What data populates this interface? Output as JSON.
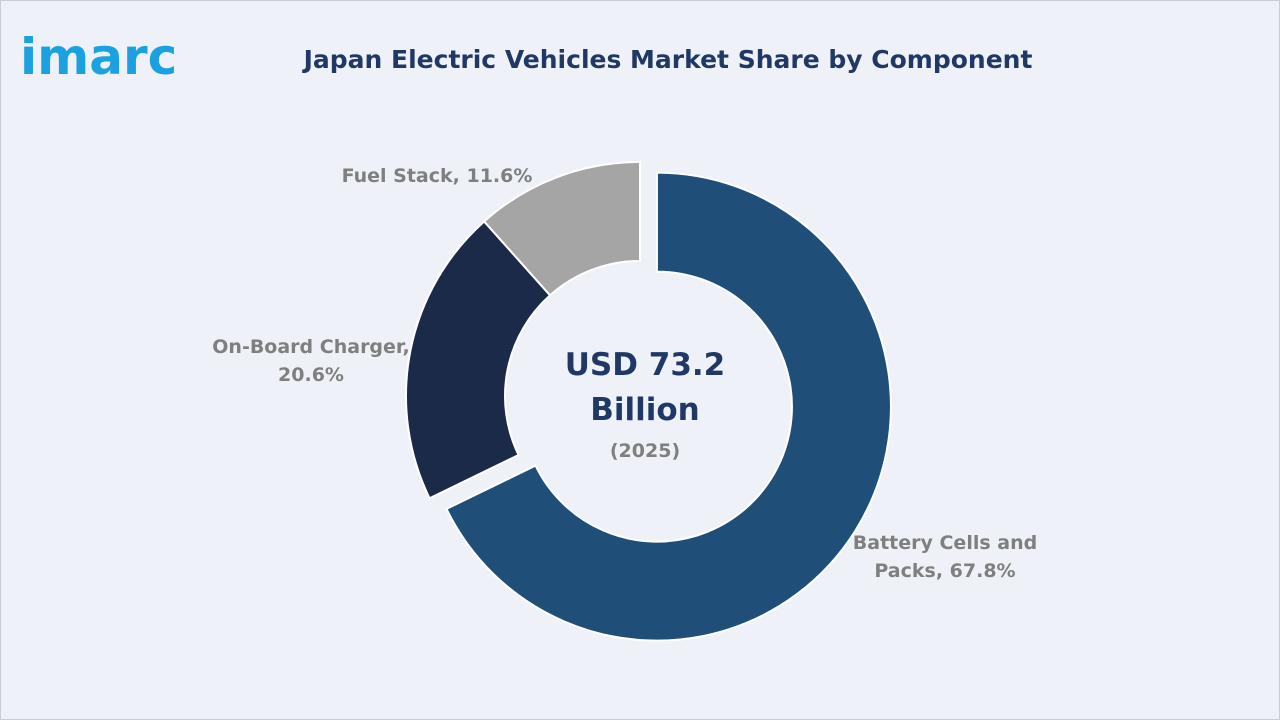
{
  "logo": "imarc",
  "chart_data": {
    "type": "pie",
    "title": "Japan Electric Vehicles Market Share by Component",
    "center_text": "USD 73.2 Billion",
    "center_subtext": "(2025)",
    "values": [
      67.8,
      20.6,
      11.6
    ],
    "value_labels": [
      "Battery Cells and Packs, 67.8%",
      "On-Board Charger, 20.6%",
      "Fuel Stack, 11.6%"
    ],
    "colors": [
      "#1f4e79",
      "#1b2a48",
      "#a5a5a5"
    ]
  }
}
